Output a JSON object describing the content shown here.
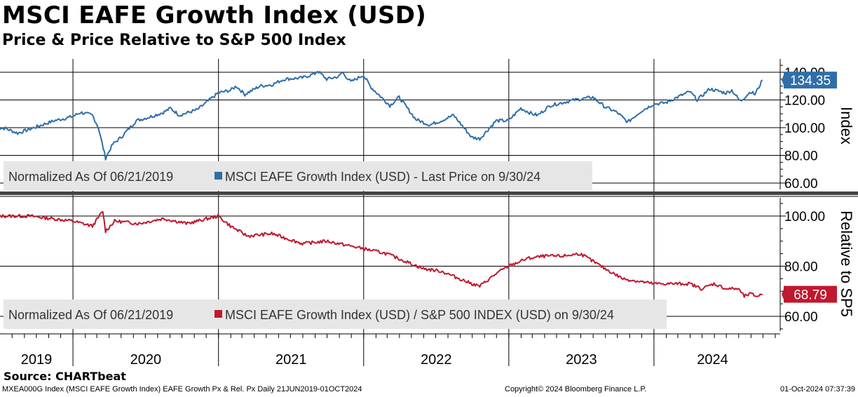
{
  "title": "MSCI EAFE Growth Index (USD)",
  "subtitle": "Price & Price Relative to S&P 500 Index",
  "source": "Source: CHARTbeat",
  "footer": {
    "left": "MXEA000G Index (MSCI EAFE Growth Index) EAFE Growth Px & Rel. Px  Daily 21JUN2019-01OCT2024",
    "center": "Copyright© 2024 Bloomberg Finance L.P.",
    "right": "01-Oct-2024 07:37:39"
  },
  "colors": {
    "price": "#2f6ea8",
    "relative": "#c0182e",
    "grid": "#000000",
    "legend_bg": "#e6e6e6"
  },
  "chart_data": [
    {
      "type": "line",
      "panel": "top",
      "ylabel": "Index",
      "ylim": [
        55,
        143
      ],
      "yticks": [
        60,
        80,
        100,
        120,
        140
      ],
      "ytick_labels": [
        "60.00",
        "80.00",
        "100.00",
        "120.00",
        "140.00"
      ],
      "legend": {
        "prefix": "Normalized As Of 06/21/2019",
        "label": "MSCI EAFE Growth Index (USD) - Last Price on 9/30/24"
      },
      "last_value_label": "134.35",
      "series": [
        {
          "name": "MSCI EAFE Growth Index (USD) - Last Price on 9/30/24",
          "points": [
            [
              "2019-06-21",
              100
            ],
            [
              "2019-07-15",
              99.5
            ],
            [
              "2019-08-15",
              96
            ],
            [
              "2019-09-15",
              99
            ],
            [
              "2019-10-15",
              102
            ],
            [
              "2019-11-15",
              105
            ],
            [
              "2019-12-31",
              108
            ],
            [
              "2020-01-20",
              111
            ],
            [
              "2020-02-19",
              109
            ],
            [
              "2020-03-05",
              100
            ],
            [
              "2020-03-23",
              78
            ],
            [
              "2020-04-10",
              88
            ],
            [
              "2020-05-01",
              93
            ],
            [
              "2020-06-08",
              105
            ],
            [
              "2020-07-15",
              108
            ],
            [
              "2020-08-15",
              111
            ],
            [
              "2020-09-02",
              114
            ],
            [
              "2020-09-25",
              109
            ],
            [
              "2020-11-09",
              113
            ],
            [
              "2020-12-31",
              125
            ],
            [
              "2021-01-31",
              127
            ],
            [
              "2021-02-15",
              130
            ],
            [
              "2021-03-08",
              124
            ],
            [
              "2021-04-15",
              130
            ],
            [
              "2021-05-15",
              131
            ],
            [
              "2021-06-15",
              135
            ],
            [
              "2021-07-31",
              136
            ],
            [
              "2021-08-31",
              139
            ],
            [
              "2021-09-07",
              141
            ],
            [
              "2021-09-30",
              135
            ],
            [
              "2021-10-31",
              137
            ],
            [
              "2021-11-08",
              140
            ],
            [
              "2021-11-30",
              133
            ],
            [
              "2021-12-31",
              138
            ],
            [
              "2022-01-20",
              129
            ],
            [
              "2022-03-08",
              116
            ],
            [
              "2022-03-31",
              122
            ],
            [
              "2022-05-12",
              106
            ],
            [
              "2022-06-16",
              102
            ],
            [
              "2022-07-15",
              105
            ],
            [
              "2022-08-15",
              109
            ],
            [
              "2022-09-30",
              93
            ],
            [
              "2022-10-20",
              92
            ],
            [
              "2022-11-30",
              105
            ],
            [
              "2022-12-31",
              105
            ],
            [
              "2023-01-31",
              114
            ],
            [
              "2023-02-28",
              110
            ],
            [
              "2023-03-15",
              109
            ],
            [
              "2023-04-15",
              116
            ],
            [
              "2023-05-15",
              118
            ],
            [
              "2023-06-15",
              120
            ],
            [
              "2023-07-31",
              122
            ],
            [
              "2023-08-31",
              115
            ],
            [
              "2023-09-30",
              111
            ],
            [
              "2023-10-27",
              104
            ],
            [
              "2023-11-30",
              112
            ],
            [
              "2023-12-31",
              117
            ],
            [
              "2024-01-31",
              118
            ],
            [
              "2024-02-29",
              122
            ],
            [
              "2024-03-31",
              126
            ],
            [
              "2024-04-19",
              120
            ],
            [
              "2024-05-20",
              128
            ],
            [
              "2024-06-30",
              125
            ],
            [
              "2024-07-15",
              127
            ],
            [
              "2024-08-05",
              119
            ],
            [
              "2024-08-31",
              126
            ],
            [
              "2024-09-11",
              124
            ],
            [
              "2024-09-30",
              134.35
            ]
          ]
        }
      ]
    },
    {
      "type": "line",
      "panel": "bottom",
      "ylabel": "Relative to SP5",
      "ylim": [
        55,
        109
      ],
      "yticks": [
        60,
        80,
        100
      ],
      "ytick_labels": [
        "60.00",
        "80.00",
        "100.00"
      ],
      "legend": {
        "prefix": "Normalized As Of 06/21/2019",
        "label": "MSCI EAFE Growth Index (USD) / S&P 500 INDEX (USD) on 9/30/24"
      },
      "last_value_label": "68.79",
      "series": [
        {
          "name": "MSCI EAFE Growth Index (USD) / S&P 500 INDEX (USD) on 9/30/24",
          "points": [
            [
              "2019-06-21",
              100
            ],
            [
              "2019-09-15",
              100
            ],
            [
              "2019-12-31",
              98
            ],
            [
              "2020-02-19",
              96
            ],
            [
              "2020-03-16",
              102
            ],
            [
              "2020-03-23",
              94
            ],
            [
              "2020-04-15",
              98
            ],
            [
              "2020-06-15",
              97
            ],
            [
              "2020-08-15",
              99
            ],
            [
              "2020-10-15",
              97
            ],
            [
              "2020-12-31",
              100
            ],
            [
              "2021-01-31",
              96
            ],
            [
              "2021-03-15",
              92
            ],
            [
              "2021-05-15",
              93
            ],
            [
              "2021-07-31",
              89
            ],
            [
              "2021-09-30",
              90
            ],
            [
              "2021-11-30",
              88
            ],
            [
              "2021-12-31",
              87
            ],
            [
              "2022-02-28",
              85
            ],
            [
              "2022-04-15",
              82
            ],
            [
              "2022-05-31",
              79
            ],
            [
              "2022-07-15",
              78
            ],
            [
              "2022-09-30",
              73
            ],
            [
              "2022-10-20",
              72
            ],
            [
              "2022-11-30",
              77
            ],
            [
              "2022-12-31",
              80
            ],
            [
              "2023-02-15",
              83
            ],
            [
              "2023-03-31",
              84
            ],
            [
              "2023-05-15",
              84
            ],
            [
              "2023-06-30",
              85
            ],
            [
              "2023-07-31",
              82
            ],
            [
              "2023-08-31",
              79
            ],
            [
              "2023-10-15",
              75
            ],
            [
              "2023-12-31",
              73
            ],
            [
              "2024-02-29",
              73
            ],
            [
              "2024-03-31",
              73
            ],
            [
              "2024-04-30",
              71
            ],
            [
              "2024-05-31",
              73
            ],
            [
              "2024-06-30",
              71
            ],
            [
              "2024-07-31",
              71
            ],
            [
              "2024-08-15",
              68
            ],
            [
              "2024-08-31",
              69
            ],
            [
              "2024-09-15",
              68
            ],
            [
              "2024-09-30",
              68.79
            ]
          ]
        }
      ]
    }
  ],
  "x_axis": {
    "range": [
      "2019-01-01",
      "2024-12-31"
    ],
    "year_labels": [
      "2019",
      "2020",
      "2021",
      "2022",
      "2023",
      "2024"
    ]
  }
}
